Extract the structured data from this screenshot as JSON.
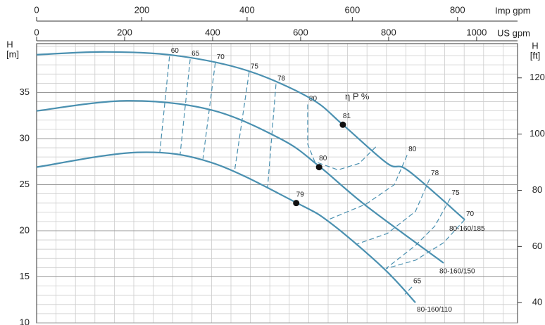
{
  "chart_data": {
    "type": "line",
    "xlabel": "US gpm",
    "x2label": "Imp gpm",
    "ylabel": "H",
    "yunit": "[m]",
    "y2label": "H",
    "y2unit": "[ft]",
    "xlim": [
      0,
      1093
    ],
    "xticks": [
      0,
      200,
      400,
      600,
      800,
      1000
    ],
    "x2lim": [
      0,
      914
    ],
    "x2ticks": [
      0,
      200,
      400,
      600,
      800
    ],
    "ylim": [
      10,
      40.3
    ],
    "yticks": [
      10,
      15,
      20,
      25,
      30,
      35
    ],
    "y2lim": [
      32.8,
      132.2
    ],
    "y2ticks": [
      40,
      60,
      80,
      100,
      120
    ],
    "grid": true,
    "series": [
      {
        "name": "80-160/185",
        "color": "#4a90b0",
        "x": [
          0,
          157,
          317,
          477,
          621,
          696,
          797,
          845,
          973
        ],
        "values": [
          39.1,
          39.4,
          39.0,
          37.4,
          34.4,
          31.5,
          27.3,
          26.5,
          21.2
        ]
      },
      {
        "name": "80-160/150",
        "color": "#4a90b0",
        "x": [
          0,
          205,
          397,
          557,
          642,
          749,
          925
        ],
        "values": [
          33.0,
          34.1,
          33.1,
          29.9,
          27.0,
          22.7,
          16.5
        ]
      },
      {
        "name": "80-160/110",
        "color": "#4a90b0",
        "x": [
          0,
          229,
          397,
          592,
          669,
          789,
          861
        ],
        "values": [
          26.9,
          28.5,
          27.4,
          23.0,
          20.8,
          15.9,
          12.2
        ]
      }
    ],
    "efficiency_annotation": "η P %",
    "efficiency_lines": [
      {
        "label": 60,
        "x": [
          302,
          280
        ],
        "values": [
          38.9,
          28.5
        ]
      },
      {
        "label": 65,
        "x": [
          349,
          326
        ],
        "values": [
          38.6,
          28.2
        ]
      },
      {
        "label": 70,
        "x": [
          406,
          378
        ],
        "values": [
          38.2,
          27.8
        ]
      },
      {
        "label": 75,
        "x": [
          483,
          450
        ],
        "values": [
          37.2,
          26.5
        ]
      },
      {
        "label": 78,
        "x": [
          544,
          525
        ],
        "values": [
          35.9,
          24.7
        ]
      },
      {
        "label": 80,
        "x": [
          616,
          616,
          632,
          685,
          733,
          773
        ],
        "values": [
          33.7,
          29.4,
          27.5,
          26.6,
          27.3,
          29.2
        ]
      },
      {
        "label": 80,
        "x": [
          842,
          813,
          749,
          658
        ],
        "values": [
          28.2,
          25.0,
          22.9,
          21.1
        ]
      },
      {
        "label": 78,
        "x": [
          893,
          861,
          797,
          725
        ],
        "values": [
          25.6,
          22.1,
          19.7,
          18.5
        ]
      },
      {
        "label": 75,
        "x": [
          940,
          905,
          861,
          794
        ],
        "values": [
          23.5,
          20.5,
          18.4,
          15.9
        ]
      },
      {
        "label": 70,
        "x": [
          973,
          925,
          861,
          794
        ],
        "values": [
          21.2,
          18.7,
          16.8,
          15.9
        ]
      },
      {
        "label": 65,
        "x": [
          853,
          837
        ],
        "values": [
          13.9,
          13.1
        ]
      }
    ],
    "best_points": [
      {
        "label": 81,
        "x": 696,
        "value": 31.5
      },
      {
        "label": 80,
        "x": 642,
        "value": 26.9
      },
      {
        "label": 79,
        "x": 590,
        "value": 23.0
      }
    ]
  }
}
